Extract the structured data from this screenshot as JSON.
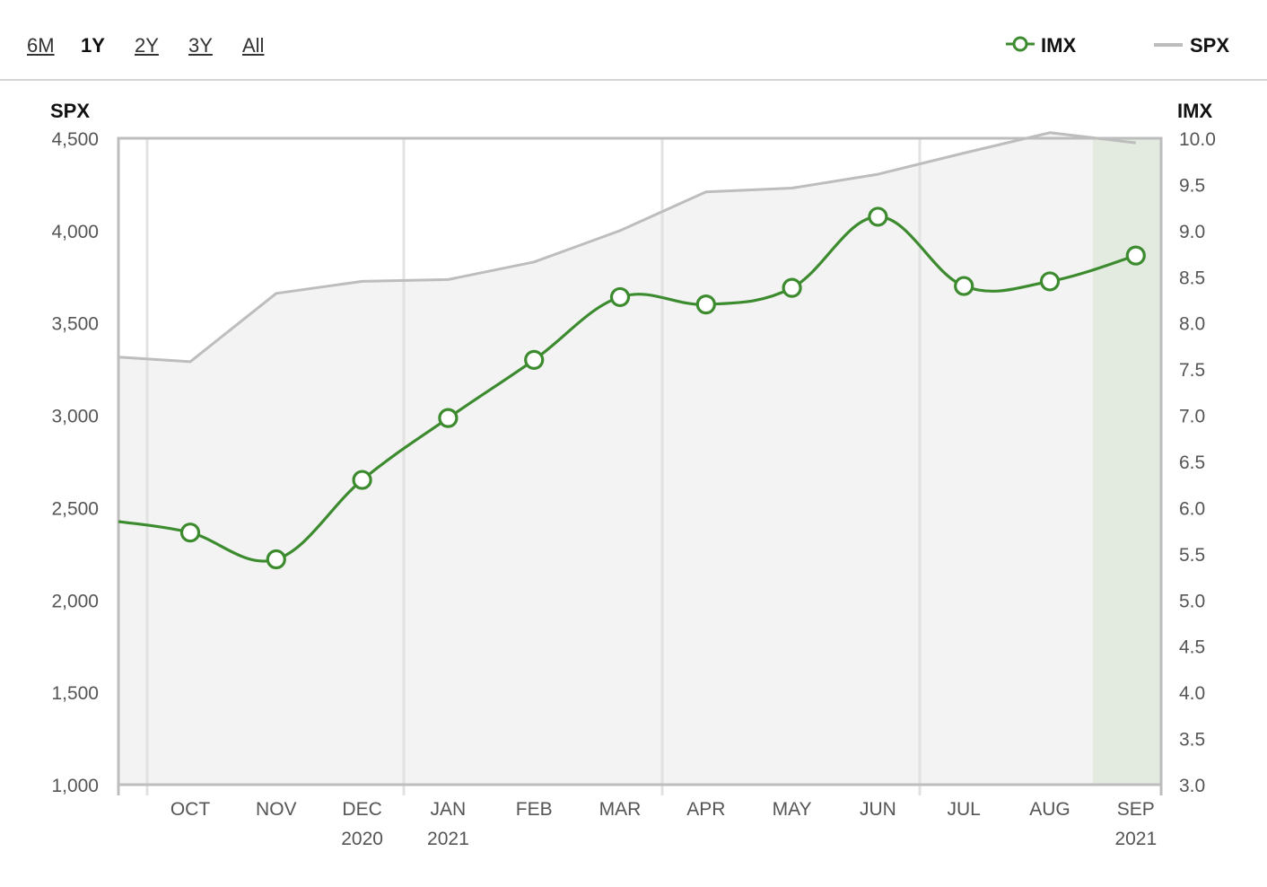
{
  "range_selector": {
    "options": [
      "6M",
      "1Y",
      "2Y",
      "3Y",
      "All"
    ],
    "active": "1Y"
  },
  "legend": [
    {
      "name": "IMX",
      "color": "#3d8b2f",
      "symbol": "line-with-circle"
    },
    {
      "name": "SPX",
      "color": "#bdbdbd",
      "symbol": "line"
    }
  ],
  "chart_data": {
    "type": "line",
    "x_labels": [
      "OCT",
      "NOV",
      "DEC",
      "JAN",
      "FEB",
      "MAR",
      "APR",
      "MAY",
      "JUN",
      "JUL",
      "AUG",
      "SEP"
    ],
    "x_year_labels": {
      "DEC": "2020",
      "JAN": "2021",
      "SEP": "2021"
    },
    "left_axis": {
      "title": "SPX",
      "ticks": [
        "4,500",
        "4,000",
        "3,500",
        "3,000",
        "2,500",
        "2,000",
        "1,500",
        "1,000"
      ],
      "range": [
        1000,
        4500
      ]
    },
    "right_axis": {
      "title": "IMX",
      "ticks": [
        "10.0",
        "9.5",
        "9.0",
        "8.5",
        "8.0",
        "7.5",
        "7.0",
        "6.5",
        "6.0",
        "5.5",
        "5.0",
        "4.5",
        "4.0",
        "3.5",
        "3.0"
      ],
      "range": [
        3.0,
        10.0
      ]
    },
    "series": [
      {
        "name": "SPX",
        "axis": "left",
        "type": "area",
        "color": "#bdbdbd",
        "start_value": 3315,
        "values": [
          3290,
          3660,
          3725,
          3735,
          3830,
          4000,
          4210,
          4230,
          4305,
          4420,
          4530,
          4475
        ]
      },
      {
        "name": "IMX",
        "axis": "right",
        "type": "spline",
        "color": "#3d8b2f",
        "start_value": 5.85,
        "values": [
          5.73,
          5.44,
          6.3,
          6.97,
          7.6,
          8.28,
          8.2,
          8.38,
          9.15,
          8.4,
          8.45,
          8.73
        ]
      }
    ],
    "highlight_last_period": true,
    "grid": "vertical"
  }
}
